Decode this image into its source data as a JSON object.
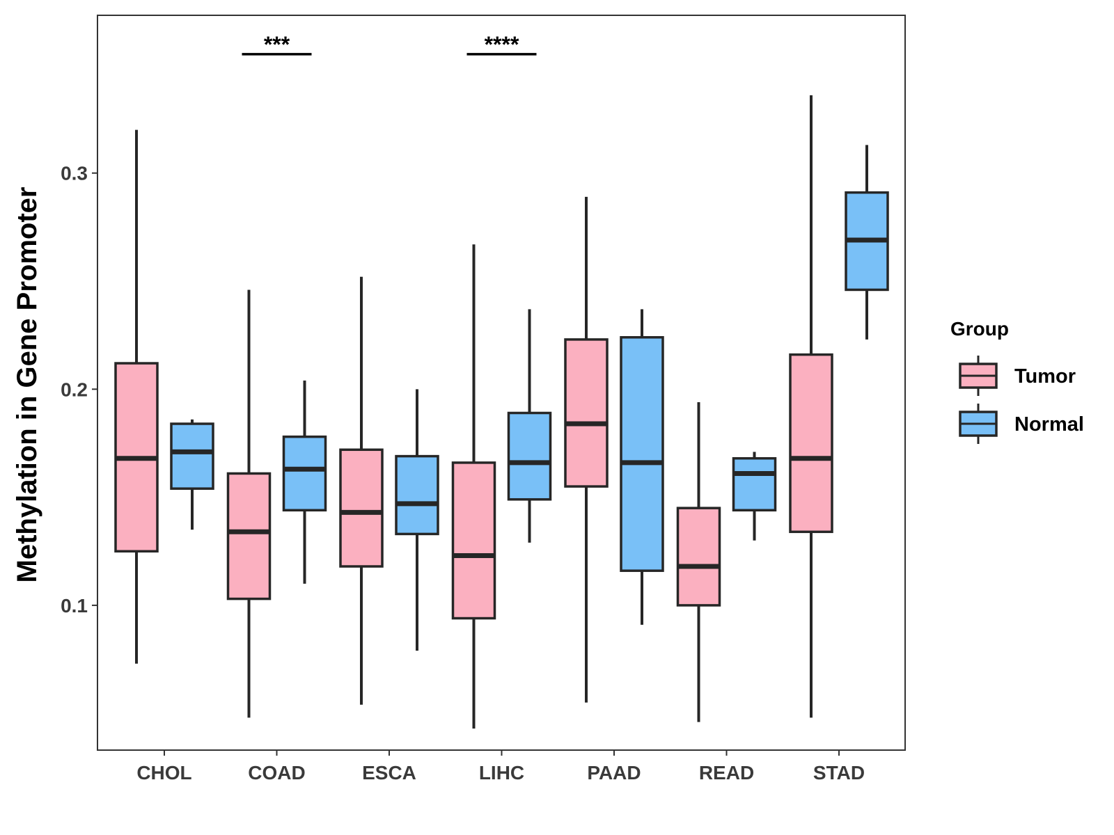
{
  "chart_data": {
    "type": "boxplot",
    "title": "",
    "xlabel": "",
    "ylabel": "Methylation in Gene Promoter",
    "ylim": [
      0.033,
      0.373
    ],
    "yticks": [
      0.1,
      0.2,
      0.3
    ],
    "ytick_labels": [
      "0.1",
      "0.2",
      "0.3"
    ],
    "categories": [
      "CHOL",
      "COAD",
      "ESCA",
      "LIHC",
      "PAAD",
      "READ",
      "STAD"
    ],
    "legend": {
      "title": "Group",
      "position": "right",
      "entries": [
        {
          "name": "Tumor",
          "color": "#fbb0c0"
        },
        {
          "name": "Normal",
          "color": "#79c0f7"
        }
      ]
    },
    "series": [
      {
        "name": "Tumor",
        "color": "#fbb0c0",
        "boxes": [
          {
            "category": "CHOL",
            "whisker_low": 0.073,
            "q1": 0.125,
            "median": 0.168,
            "q3": 0.212,
            "whisker_high": 0.32
          },
          {
            "category": "COAD",
            "whisker_low": 0.048,
            "q1": 0.103,
            "median": 0.134,
            "q3": 0.161,
            "whisker_high": 0.246
          },
          {
            "category": "ESCA",
            "whisker_low": 0.054,
            "q1": 0.118,
            "median": 0.143,
            "q3": 0.172,
            "whisker_high": 0.252
          },
          {
            "category": "LIHC",
            "whisker_low": 0.043,
            "q1": 0.094,
            "median": 0.123,
            "q3": 0.166,
            "whisker_high": 0.267
          },
          {
            "category": "PAAD",
            "whisker_low": 0.055,
            "q1": 0.155,
            "median": 0.184,
            "q3": 0.223,
            "whisker_high": 0.289
          },
          {
            "category": "READ",
            "whisker_low": 0.046,
            "q1": 0.1,
            "median": 0.118,
            "q3": 0.145,
            "whisker_high": 0.194
          },
          {
            "category": "STAD",
            "whisker_low": 0.048,
            "q1": 0.134,
            "median": 0.168,
            "q3": 0.216,
            "whisker_high": 0.336
          }
        ]
      },
      {
        "name": "Normal",
        "color": "#79c0f7",
        "boxes": [
          {
            "category": "CHOL",
            "whisker_low": 0.135,
            "q1": 0.154,
            "median": 0.171,
            "q3": 0.184,
            "whisker_high": 0.186
          },
          {
            "category": "COAD",
            "whisker_low": 0.11,
            "q1": 0.144,
            "median": 0.163,
            "q3": 0.178,
            "whisker_high": 0.204
          },
          {
            "category": "ESCA",
            "whisker_low": 0.079,
            "q1": 0.133,
            "median": 0.147,
            "q3": 0.169,
            "whisker_high": 0.2
          },
          {
            "category": "LIHC",
            "whisker_low": 0.129,
            "q1": 0.149,
            "median": 0.166,
            "q3": 0.189,
            "whisker_high": 0.237
          },
          {
            "category": "PAAD",
            "whisker_low": 0.091,
            "q1": 0.116,
            "median": 0.166,
            "q3": 0.224,
            "whisker_high": 0.237
          },
          {
            "category": "READ",
            "whisker_low": 0.13,
            "q1": 0.144,
            "median": 0.161,
            "q3": 0.168,
            "whisker_high": 0.171
          },
          {
            "category": "STAD",
            "whisker_low": 0.223,
            "q1": 0.246,
            "median": 0.269,
            "q3": 0.291,
            "whisker_high": 0.313
          }
        ]
      }
    ],
    "annotations": [
      {
        "category": "COAD",
        "label": "***",
        "y": 0.355
      },
      {
        "category": "LIHC",
        "label": "****",
        "y": 0.355
      }
    ]
  },
  "colors": {
    "tumor": "#fbb0c0",
    "normal": "#79c0f7",
    "line": "#262626",
    "axis": "#333333"
  }
}
